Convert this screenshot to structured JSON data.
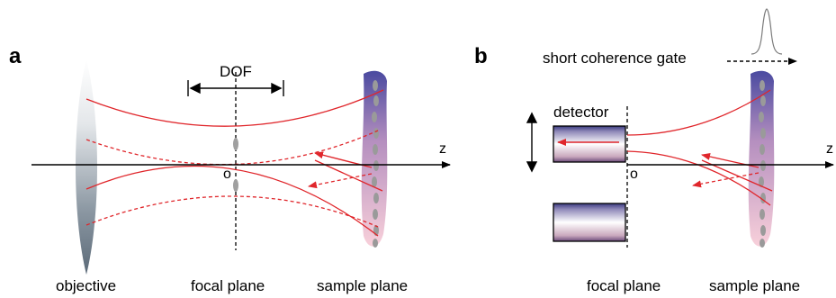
{
  "panel_a": {
    "letter": "a",
    "dof_label": "DOF",
    "origin_label": "o",
    "axis_label": "z",
    "captions": {
      "objective": "objective",
      "focal_plane": "focal plane",
      "sample_plane": "sample plane"
    }
  },
  "panel_b": {
    "letter": "b",
    "coherence_label": "short coherence gate",
    "detector_label": "detector",
    "origin_label": "o",
    "axis_label": "z",
    "captions": {
      "focal_plane": "focal plane",
      "sample_plane": "sample plane"
    }
  },
  "colors": {
    "beam": "#e0262b",
    "axis": "#000000",
    "lens_dark": "#5b6a78",
    "sample_top": "#4a4aa0",
    "sample_bottom": "#f6c6d2",
    "scatterer": "#9a9a9a"
  }
}
